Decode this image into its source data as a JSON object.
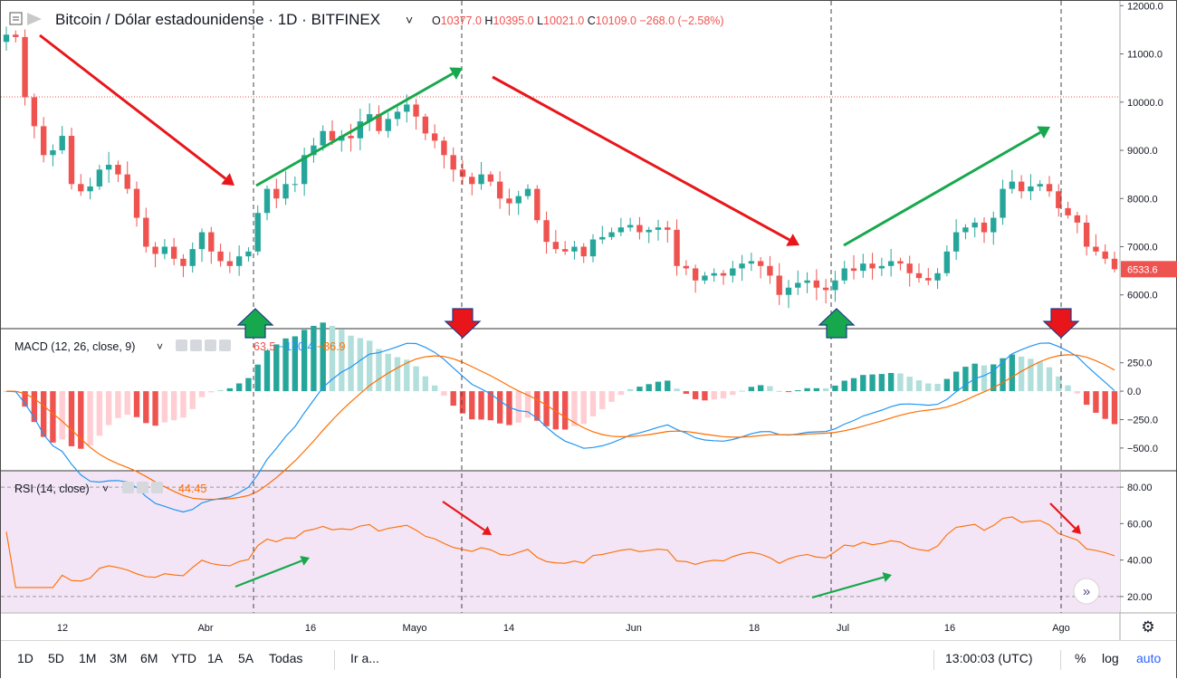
{
  "header": {
    "symbol": "Bitcoin / Dólar estadounidense",
    "sep1": "·",
    "interval": "1D",
    "sep2": "·",
    "exchange": "BITFINEX",
    "o_label": "O",
    "o_value": "10377.0",
    "h_label": "H",
    "h_value": "10395.0",
    "l_label": "L",
    "l_value": "10021.0",
    "c_label": "C",
    "c_value": "10109.0",
    "change": "−268.0 (−2.58%)"
  },
  "macd": {
    "label": "MACD (12, 26, close, 9)",
    "v_hist": "63.5",
    "v_macd": "−150.4",
    "v_signal": "−86.9"
  },
  "rsi": {
    "label": "RSI (14, close)",
    "value": "44.45"
  },
  "price_axis": [
    "12000.0",
    "11000.0",
    "10000.0",
    "9000.0",
    "8000.0",
    "7000.0",
    "6000.0"
  ],
  "macd_axis": [
    "250.0",
    "0.0",
    "−250.0",
    "−500.0"
  ],
  "rsi_axis": [
    "80.00",
    "60.00",
    "40.00",
    "20.00"
  ],
  "last_price": "6533.6",
  "time_axis": [
    "12",
    "Abr",
    "16",
    "Mayo",
    "14",
    "Jun",
    "18",
    "Jul",
    "16",
    "Ago"
  ],
  "toolbar": {
    "ranges": [
      "1D",
      "5D",
      "1M",
      "3M",
      "6M",
      "YTD",
      "1A",
      "5A",
      "Todas"
    ],
    "goto": "Ir a...",
    "time": "13:00:03 (UTC)",
    "percent": "%",
    "log": "log",
    "auto": "auto"
  },
  "colors": {
    "up": "#26a69a",
    "down": "#ef5350",
    "macd_line": "#2196f3",
    "signal_line": "#ff6d00",
    "rsi_line": "#ff6d00",
    "rsi_band": "#f3e5f5",
    "arrow_red": "#e8161a",
    "arrow_green": "#17a84d",
    "price_tag": "#ef5350"
  },
  "chart_data": {
    "type": "candlestick",
    "price_range": [
      5300,
      12100
    ],
    "ohlc_close_path": [
      11400,
      11350,
      10100,
      9500,
      8900,
      9000,
      9300,
      8300,
      8150,
      8250,
      8600,
      8700,
      8500,
      8200,
      7600,
      7000,
      6850,
      7000,
      6750,
      6600,
      6950,
      7300,
      6900,
      6700,
      6600,
      6800,
      6900,
      7700,
      8200,
      8000,
      8300,
      8300,
      8900,
      9100,
      9400,
      9200,
      9300,
      9250,
      9600,
      9750,
      9400,
      9650,
      9800,
      9950,
      9700,
      9350,
      9200,
      8900,
      8600,
      8450,
      8300,
      8500,
      8350,
      8000,
      7900,
      8050,
      8200,
      7550,
      7100,
      6950,
      6900,
      7000,
      6800,
      7150,
      7200,
      7300,
      7400,
      7450,
      7300,
      7350,
      7400,
      7350,
      6600,
      6550,
      6300,
      6400,
      6450,
      6400,
      6550,
      6650,
      6700,
      6600,
      6400,
      6000,
      6150,
      6250,
      6300,
      6150,
      6100,
      6300,
      6550,
      6500,
      6650,
      6550,
      6600,
      6700,
      6650,
      6450,
      6350,
      6300,
      6450,
      6900,
      7300,
      7400,
      7500,
      7300,
      7600,
      8200,
      8350,
      8150,
      8250,
      8300,
      8150,
      7800,
      7650,
      7500,
      7000,
      6900,
      6750,
      6533.6
    ],
    "macd_range": [
      -700,
      550
    ],
    "rsi_range": [
      15,
      85
    ],
    "rsi_levels": [
      30,
      70
    ]
  }
}
